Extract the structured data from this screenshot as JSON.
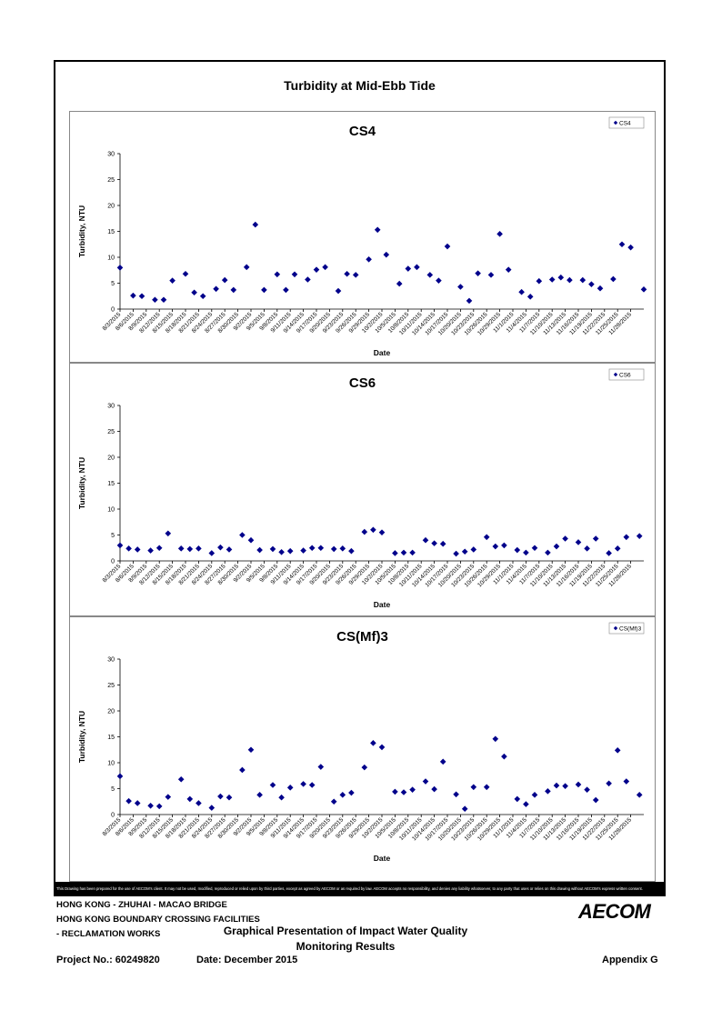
{
  "page_title": "Turbidity at Mid-Ebb Tide",
  "disclaimer": "This Drawing has been prepared for the use of AECOM's client. It may not be used, modified, reproduced or relied upon by third parties, except as agreed by AECOM or as required by law. AECOM accepts no responsibility, and denies any liability whatsoever, to any party that uses or relies on this drawing without AECOM's express written consent.",
  "title_block": {
    "project_line1": "HONG KONG - ZHUHAI - MACAO BRIDGE",
    "project_line2": "HONG KONG BOUNDARY CROSSING FACILITIES",
    "project_line3": "- RECLAMATION WORKS",
    "drawing_title_line1": "Graphical Presentation of Impact Water Quality",
    "drawing_title_line2": "Monitoring Results",
    "project_no": "Project No.: 60249820",
    "date": "Date: December 2015",
    "appendix": "Appendix G",
    "logo": "AECOM"
  },
  "chart_data": [
    {
      "type": "scatter",
      "title": "CS4",
      "xlabel": "Date",
      "ylabel": "Turbidity, NTU",
      "ylim": [
        0,
        30
      ],
      "yticks": [
        0,
        5,
        10,
        15,
        20,
        25,
        30
      ],
      "legend": "top-right",
      "x_tick_labels": [
        "8/3/2015",
        "8/6/2015",
        "8/9/2015",
        "8/12/2015",
        "8/15/2015",
        "8/18/2015",
        "8/21/2015",
        "8/24/2015",
        "8/27/2015",
        "8/30/2015",
        "9/2/2015",
        "9/5/2015",
        "9/8/2015",
        "9/11/2015",
        "9/14/2015",
        "9/17/2015",
        "9/20/2015",
        "9/23/2015",
        "9/26/2015",
        "9/29/2015",
        "10/2/2015",
        "10/5/2015",
        "10/8/2015",
        "10/11/2015",
        "10/14/2015",
        "10/17/2015",
        "10/20/2015",
        "10/23/2015",
        "10/26/2015",
        "10/29/2015",
        "11/1/2015",
        "11/4/2015",
        "11/7/2015",
        "11/10/2015",
        "11/13/2015",
        "11/16/2015",
        "11/19/2015",
        "11/22/2015",
        "11/25/2015",
        "11/28/2015"
      ],
      "series": [
        {
          "name": "CS4",
          "color": "#00008b",
          "x": [
            "8/3/2015",
            "8/6/2015",
            "8/8/2015",
            "8/11/2015",
            "8/13/2015",
            "8/15/2015",
            "8/18/2015",
            "8/20/2015",
            "8/22/2015",
            "8/25/2015",
            "8/27/2015",
            "8/29/2015",
            "9/1/2015",
            "9/3/2015",
            "9/5/2015",
            "9/8/2015",
            "9/10/2015",
            "9/12/2015",
            "9/15/2015",
            "9/17/2015",
            "9/19/2015",
            "9/22/2015",
            "9/24/2015",
            "9/26/2015",
            "9/29/2015",
            "10/1/2015",
            "10/3/2015",
            "10/6/2015",
            "10/8/2015",
            "10/10/2015",
            "10/13/2015",
            "10/15/2015",
            "10/17/2015",
            "10/20/2015",
            "10/22/2015",
            "10/24/2015",
            "10/27/2015",
            "10/29/2015",
            "10/31/2015",
            "11/3/2015",
            "11/5/2015",
            "11/7/2015",
            "11/10/2015",
            "11/12/2015",
            "11/14/2015",
            "11/17/2015",
            "11/19/2015",
            "11/21/2015",
            "11/24/2015",
            "11/26/2015",
            "11/28/2015",
            "12/1/2015"
          ],
          "y": [
            8.0,
            2.6,
            2.5,
            1.8,
            1.8,
            5.5,
            6.8,
            3.2,
            2.5,
            3.9,
            5.6,
            3.7,
            8.1,
            16.3,
            3.7,
            6.7,
            3.7,
            6.7,
            5.7,
            7.6,
            8.1,
            3.5,
            6.8,
            6.6,
            9.6,
            15.3,
            10.5,
            4.9,
            7.8,
            8.1,
            6.6,
            5.5,
            12.1,
            4.3,
            1.6,
            6.9,
            6.6,
            14.5,
            7.6,
            3.3,
            2.4,
            5.4,
            5.7,
            6.1,
            5.6,
            5.6,
            4.8,
            4.0,
            5.8,
            12.5,
            11.9,
            3.8
          ]
        }
      ]
    },
    {
      "type": "scatter",
      "title": "CS6",
      "xlabel": "Date",
      "ylabel": "Turbidity, NTU",
      "ylim": [
        0,
        30
      ],
      "yticks": [
        0,
        5,
        10,
        15,
        20,
        25,
        30
      ],
      "legend": "top-right",
      "x_tick_labels": [
        "8/3/2015",
        "8/6/2015",
        "8/9/2015",
        "8/12/2015",
        "8/15/2015",
        "8/18/2015",
        "8/21/2015",
        "8/24/2015",
        "8/27/2015",
        "8/30/2015",
        "9/2/2015",
        "9/5/2015",
        "9/8/2015",
        "9/11/2015",
        "9/14/2015",
        "9/17/2015",
        "9/20/2015",
        "9/23/2015",
        "9/26/2015",
        "9/29/2015",
        "10/2/2015",
        "10/5/2015",
        "10/8/2015",
        "10/11/2015",
        "10/14/2015",
        "10/17/2015",
        "10/20/2015",
        "10/23/2015",
        "10/26/2015",
        "10/29/2015",
        "11/1/2015",
        "11/4/2015",
        "11/7/2015",
        "11/10/2015",
        "11/13/2015",
        "11/16/2015",
        "11/19/2015",
        "11/22/2015",
        "11/25/2015",
        "11/28/2015"
      ],
      "series": [
        {
          "name": "CS6",
          "color": "#00008b",
          "x": [
            "8/3/2015",
            "8/5/2015",
            "8/7/2015",
            "8/10/2015",
            "8/12/2015",
            "8/14/2015",
            "8/17/2015",
            "8/19/2015",
            "8/21/2015",
            "8/24/2015",
            "8/26/2015",
            "8/28/2015",
            "8/31/2015",
            "9/2/2015",
            "9/4/2015",
            "9/7/2015",
            "9/9/2015",
            "9/11/2015",
            "9/14/2015",
            "9/16/2015",
            "9/18/2015",
            "9/21/2015",
            "9/23/2015",
            "9/25/2015",
            "9/28/2015",
            "9/30/2015",
            "10/2/2015",
            "10/5/2015",
            "10/7/2015",
            "10/9/2015",
            "10/12/2015",
            "10/14/2015",
            "10/16/2015",
            "10/19/2015",
            "10/21/2015",
            "10/23/2015",
            "10/26/2015",
            "10/28/2015",
            "10/30/2015",
            "11/2/2015",
            "11/4/2015",
            "11/6/2015",
            "11/9/2015",
            "11/11/2015",
            "11/13/2015",
            "11/16/2015",
            "11/18/2015",
            "11/20/2015",
            "11/23/2015",
            "11/25/2015",
            "11/27/2015",
            "11/30/2015"
          ],
          "y": [
            3.0,
            2.4,
            2.2,
            2.0,
            2.5,
            5.3,
            2.4,
            2.3,
            2.4,
            1.5,
            2.6,
            2.2,
            5.0,
            4.0,
            2.1,
            2.3,
            1.7,
            1.9,
            2.0,
            2.5,
            2.5,
            2.3,
            2.4,
            1.9,
            5.6,
            6.0,
            5.5,
            1.5,
            1.6,
            1.6,
            4.0,
            3.4,
            3.3,
            1.4,
            1.8,
            2.2,
            4.6,
            2.8,
            3.0,
            2.1,
            1.6,
            2.5,
            1.6,
            2.8,
            4.3,
            3.6,
            2.4,
            4.3,
            1.5,
            2.4,
            4.6,
            4.8
          ]
        }
      ]
    },
    {
      "type": "scatter",
      "title": "CS(Mf)3",
      "xlabel": "Date",
      "ylabel": "Turbidity, NTU",
      "ylim": [
        0,
        30
      ],
      "yticks": [
        0,
        5,
        10,
        15,
        20,
        25,
        30
      ],
      "legend": "top-right",
      "x_tick_labels": [
        "8/3/2015",
        "8/6/2015",
        "8/9/2015",
        "8/12/2015",
        "8/15/2015",
        "8/18/2015",
        "8/21/2015",
        "8/24/2015",
        "8/27/2015",
        "8/30/2015",
        "9/2/2015",
        "9/5/2015",
        "9/8/2015",
        "9/11/2015",
        "9/14/2015",
        "9/17/2015",
        "9/20/2015",
        "9/23/2015",
        "9/26/2015",
        "9/29/2015",
        "10/2/2015",
        "10/5/2015",
        "10/8/2015",
        "10/11/2015",
        "10/14/2015",
        "10/17/2015",
        "10/20/2015",
        "10/23/2015",
        "10/26/2015",
        "10/29/2015",
        "11/1/2015",
        "11/4/2015",
        "11/7/2015",
        "11/10/2015",
        "11/13/2015",
        "11/16/2015",
        "11/19/2015",
        "11/22/2015",
        "11/25/2015",
        "11/28/2015"
      ],
      "series": [
        {
          "name": "CS(Mf)3",
          "color": "#00008b",
          "x": [
            "8/3/2015",
            "8/5/2015",
            "8/7/2015",
            "8/10/2015",
            "8/12/2015",
            "8/14/2015",
            "8/17/2015",
            "8/19/2015",
            "8/21/2015",
            "8/24/2015",
            "8/26/2015",
            "8/28/2015",
            "8/31/2015",
            "9/2/2015",
            "9/4/2015",
            "9/7/2015",
            "9/9/2015",
            "9/11/2015",
            "9/14/2015",
            "9/16/2015",
            "9/18/2015",
            "9/21/2015",
            "9/23/2015",
            "9/25/2015",
            "9/28/2015",
            "9/30/2015",
            "10/2/2015",
            "10/5/2015",
            "10/7/2015",
            "10/9/2015",
            "10/12/2015",
            "10/14/2015",
            "10/16/2015",
            "10/19/2015",
            "10/21/2015",
            "10/23/2015",
            "10/26/2015",
            "10/28/2015",
            "10/30/2015",
            "11/2/2015",
            "11/4/2015",
            "11/6/2015",
            "11/9/2015",
            "11/11/2015",
            "11/13/2015",
            "11/16/2015",
            "11/18/2015",
            "11/20/2015",
            "11/23/2015",
            "11/25/2015",
            "11/27/2015",
            "11/30/2015"
          ],
          "y": [
            7.4,
            2.6,
            2.2,
            1.7,
            1.6,
            3.4,
            6.8,
            3.0,
            2.2,
            1.3,
            3.5,
            3.3,
            8.6,
            12.5,
            3.8,
            5.7,
            3.3,
            5.2,
            5.9,
            5.7,
            9.2,
            2.5,
            3.8,
            4.2,
            9.1,
            13.8,
            13.0,
            4.4,
            4.3,
            4.8,
            6.4,
            4.9,
            10.2,
            3.9,
            1.1,
            5.3,
            5.3,
            14.6,
            11.2,
            3.0,
            2.0,
            3.8,
            4.5,
            5.6,
            5.5,
            5.8,
            4.8,
            2.8,
            6.0,
            12.4,
            6.4,
            3.8
          ]
        }
      ]
    }
  ]
}
